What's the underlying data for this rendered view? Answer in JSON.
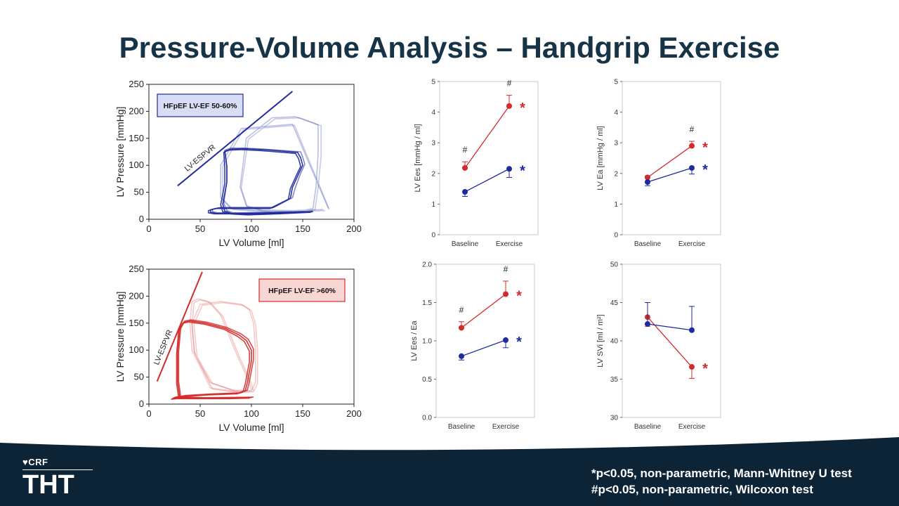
{
  "title": "Pressure-Volume Analysis – Handgrip Exercise",
  "footnotes": {
    "line1_mark": "*",
    "line1": "p<0.05, non-parametric, Mann-Whitney U test",
    "line2": "#p<0.05, non-parametric, Wilcoxon test"
  },
  "logo": {
    "top": "CRF",
    "bottom": "THT"
  },
  "colors": {
    "red": "#d22b2b",
    "blue": "#1f2a9b",
    "title": "#173446",
    "footer": "#0d2436"
  },
  "chart_data": [
    {
      "id": "pv-top",
      "type": "line",
      "subtype": "pressure-volume loops",
      "xlabel": "LV Volume [ml]",
      "ylabel": "LV Pressure [mmHg]",
      "xlim": [
        0,
        200
      ],
      "ylim": [
        0,
        250
      ],
      "xticks": [
        0,
        50,
        100,
        150,
        200
      ],
      "yticks": [
        0,
        50,
        100,
        150,
        200,
        250
      ],
      "legend": "HFpEF LV-EF 50-60%",
      "legend_position": "top-left",
      "line_label": "LV-ESPVR",
      "color": "#1f2a9b",
      "espvr": [
        [
          28,
          62
        ],
        [
          140,
          237
        ]
      ],
      "loops": [
        {
          "alpha": 0.55,
          "x": [
            160,
            120,
            95,
            82,
            76,
            73,
            76,
            76,
            74,
            80,
            92,
            112,
            148,
            150,
            152,
            148,
            143,
            140,
            122,
            70,
            65,
            62,
            62,
            67,
            90,
            122,
            160
          ]
        },
        {
          "alpha": 0.3,
          "x": [
            170,
            140,
            110,
            95,
            89,
            95,
            120,
            143,
            165,
            165,
            163,
            160,
            150,
            120,
            80,
            70,
            70,
            90,
            140,
            175
          ]
        },
        {
          "alpha": 0.25,
          "x": [
            172,
            142,
            112,
            96,
            90,
            97,
            123,
            147,
            168,
            168,
            165,
            162,
            152,
            122,
            82,
            72,
            72,
            92,
            142,
            176
          ]
        },
        {
          "alpha": 0.95,
          "x": [
            160,
            128,
            98,
            80,
            74,
            72,
            76,
            76,
            74,
            80,
            92,
            112,
            145,
            148,
            150,
            146,
            140,
            138,
            120,
            68,
            63,
            60,
            60,
            66,
            88,
            120,
            160
          ]
        },
        {
          "alpha": 0.9,
          "x": [
            158,
            126,
            96,
            78,
            72,
            70,
            74,
            74,
            73,
            78,
            90,
            110,
            143,
            146,
            148,
            144,
            138,
            136,
            118,
            66,
            61,
            58,
            58,
            64,
            86,
            118,
            158
          ]
        }
      ],
      "loops_y": [
        [
          15,
          12,
          10,
          12,
          16,
          30,
          70,
          100,
          128,
          132,
          132,
          130,
          125,
          115,
          102,
          85,
          60,
          40,
          22,
          22,
          20,
          18,
          14,
          12,
          12,
          13,
          15
        ],
        [
          18,
          16,
          17,
          25,
          60,
          150,
          188,
          190,
          175,
          120,
          60,
          20,
          16,
          14,
          20,
          40,
          100,
          168,
          176,
          20
        ],
        [
          16,
          14,
          15,
          23,
          58,
          148,
          186,
          188,
          173,
          118,
          58,
          18,
          14,
          12,
          18,
          38,
          98,
          166,
          174,
          18
        ],
        [
          14,
          11,
          9,
          11,
          15,
          28,
          68,
          98,
          126,
          130,
          131,
          129,
          124,
          114,
          100,
          84,
          59,
          39,
          21,
          21,
          19,
          17,
          13,
          11,
          11,
          12,
          14
        ],
        [
          13,
          10,
          8,
          10,
          14,
          27,
          66,
          96,
          124,
          128,
          129,
          127,
          122,
          112,
          98,
          82,
          57,
          37,
          20,
          20,
          18,
          16,
          12,
          10,
          10,
          11,
          13
        ]
      ]
    },
    {
      "id": "pv-bottom",
      "type": "line",
      "subtype": "pressure-volume loops",
      "xlabel": "LV Volume [ml]",
      "ylabel": "LV Pressure [mmHg]",
      "xlim": [
        0,
        200
      ],
      "ylim": [
        0,
        250
      ],
      "xticks": [
        0,
        50,
        100,
        150,
        200
      ],
      "yticks": [
        0,
        50,
        100,
        150,
        200,
        250
      ],
      "legend": "HFpEF LV-EF >60%",
      "legend_position": "top-right",
      "line_label": "LV-ESPVR",
      "color": "#d22b2b",
      "espvr": [
        [
          8,
          42
        ],
        [
          52,
          245
        ]
      ],
      "loops": [
        {
          "alpha": 0.25,
          "x": [
            100,
            98,
            85,
            70,
            58,
            48,
            42,
            40,
            42,
            60,
            82,
            95,
            100,
            104,
            104,
            102,
            98,
            90,
            70,
            50,
            42,
            45,
            60,
            82,
            100
          ]
        },
        {
          "alpha": 0.25,
          "x": [
            102,
            100,
            87,
            72,
            60,
            50,
            44,
            42,
            44,
            62,
            84,
            97,
            102,
            106,
            106,
            104,
            100,
            92,
            72,
            52,
            44,
            47,
            62,
            84,
            102
          ]
        },
        {
          "alpha": 0.95,
          "x": [
            100,
            80,
            50,
            30,
            28,
            28,
            30,
            34,
            40,
            55,
            75,
            88,
            95,
            100,
            100,
            98,
            96,
            94,
            88,
            60,
            35,
            25,
            23,
            28,
            60,
            100
          ]
        },
        {
          "alpha": 0.9,
          "x": [
            98,
            78,
            48,
            29,
            27,
            27,
            29,
            33,
            39,
            54,
            74,
            86,
            93,
            98,
            98,
            96,
            94,
            92,
            86,
            58,
            34,
            24,
            22,
            27,
            58,
            98
          ]
        },
        {
          "alpha": 0.85,
          "x": [
            102,
            82,
            52,
            31,
            29,
            29,
            31,
            35,
            41,
            56,
            76,
            90,
            97,
            102,
            102,
            100,
            98,
            96,
            90,
            62,
            36,
            26,
            24,
            29,
            62,
            102
          ]
        }
      ],
      "loops_y": [
        [
          25,
          40,
          95,
          165,
          190,
          195,
          190,
          150,
          100,
          30,
          24,
          24,
          25,
          40,
          100,
          150,
          175,
          185,
          190,
          185,
          150,
          90,
          40,
          26,
          25
        ],
        [
          23,
          38,
          93,
          163,
          188,
          193,
          188,
          148,
          98,
          28,
          22,
          22,
          23,
          38,
          98,
          148,
          173,
          183,
          188,
          183,
          148,
          88,
          38,
          24,
          23
        ],
        [
          12,
          11,
          11,
          13,
          40,
          95,
          138,
          152,
          154,
          150,
          140,
          128,
          118,
          100,
          80,
          60,
          40,
          25,
          20,
          18,
          15,
          12,
          10,
          11,
          11,
          12
        ],
        [
          11,
          10,
          10,
          12,
          38,
          93,
          136,
          150,
          152,
          148,
          138,
          126,
          116,
          98,
          78,
          58,
          38,
          24,
          19,
          17,
          14,
          11,
          9,
          10,
          10,
          11
        ],
        [
          13,
          12,
          12,
          14,
          42,
          97,
          140,
          154,
          156,
          152,
          142,
          130,
          120,
          102,
          82,
          62,
          42,
          26,
          21,
          19,
          16,
          13,
          11,
          12,
          12,
          13
        ]
      ]
    },
    {
      "id": "ees",
      "type": "line",
      "categories": [
        "Baseline",
        "Exercise"
      ],
      "ylabel": "LV Ees [mmHg / ml]",
      "ylim": [
        0,
        5
      ],
      "yticks": [
        0,
        1,
        2,
        3,
        4,
        5
      ],
      "series": [
        {
          "color": "#d22b2b",
          "values": [
            2.18,
            4.2
          ],
          "err_up": [
            0.2,
            0.35
          ],
          "err_dn": [
            0,
            0
          ],
          "marker": "*"
        },
        {
          "color": "#1f2a9b",
          "values": [
            1.4,
            2.15
          ],
          "err_up": [
            0,
            0
          ],
          "err_dn": [
            0.15,
            0.28
          ],
          "marker": "*"
        }
      ],
      "annotations": [
        "#",
        "#"
      ]
    },
    {
      "id": "ea",
      "type": "line",
      "categories": [
        "Baseline",
        "Exercise"
      ],
      "ylabel": "LV Ea [mmHg / ml]",
      "ylim": [
        0,
        5
      ],
      "yticks": [
        0,
        1,
        2,
        3,
        4,
        5
      ],
      "series": [
        {
          "color": "#d22b2b",
          "values": [
            1.87,
            2.9
          ],
          "err_up": [
            0.05,
            0.15
          ],
          "err_dn": [
            0,
            0
          ],
          "marker": "*"
        },
        {
          "color": "#1f2a9b",
          "values": [
            1.72,
            2.18
          ],
          "err_up": [
            0,
            0
          ],
          "err_dn": [
            0.12,
            0.2
          ],
          "marker": "*"
        }
      ],
      "annotations": [
        "",
        "#"
      ]
    },
    {
      "id": "ees-ea",
      "type": "line",
      "categories": [
        "Baseline",
        "Exercise"
      ],
      "ylabel": "LV Ees / Ea",
      "ylim": [
        0,
        2.0
      ],
      "yticks": [
        "0.0",
        "0.5",
        "1.0",
        "1.5",
        "2.0"
      ],
      "series": [
        {
          "color": "#d22b2b",
          "values": [
            1.17,
            1.61
          ],
          "err_up": [
            0.08,
            0.17
          ],
          "err_dn": [
            0,
            0
          ],
          "marker": "*"
        },
        {
          "color": "#1f2a9b",
          "values": [
            0.8,
            1.01
          ],
          "err_up": [
            0,
            0
          ],
          "err_dn": [
            0.05,
            0.1
          ],
          "marker": "*"
        }
      ],
      "annotations": [
        "#",
        "#"
      ]
    },
    {
      "id": "svi",
      "type": "line",
      "categories": [
        "Baseline",
        "Exercise"
      ],
      "ylabel": "LV SVi [ml / m²]",
      "ylim": [
        30,
        50
      ],
      "yticks": [
        30,
        35,
        40,
        45,
        50
      ],
      "series": [
        {
          "color": "#d22b2b",
          "values": [
            43.1,
            36.6
          ],
          "err_up": [
            0,
            0
          ],
          "err_dn": [
            1.2,
            1.5
          ],
          "marker": "*"
        },
        {
          "color": "#1f2a9b",
          "values": [
            42.2,
            41.4
          ],
          "err_up": [
            2.8,
            3.1
          ],
          "err_dn": [
            0,
            0
          ],
          "marker": ""
        }
      ],
      "annotations": [
        "",
        ""
      ]
    }
  ]
}
